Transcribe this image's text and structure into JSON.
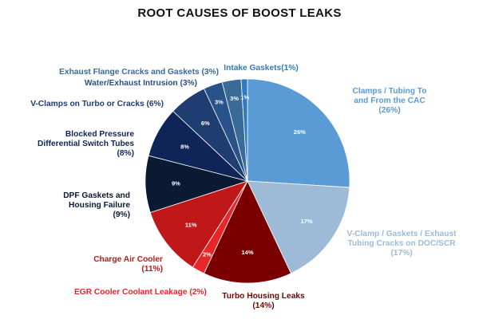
{
  "chart_data": {
    "type": "pie",
    "title": "ROOT CAUSES OF BOOST LEAKS",
    "slices": [
      {
        "label": "Clamps / Tubing To and From the CAC",
        "value": 26,
        "pct_text": "26%",
        "label_lines": [
          "Clamps / Tubing To",
          "and From the CAC",
          "(26%)"
        ],
        "color": "#5B9BD5",
        "label_color": "#5B9BD5"
      },
      {
        "label": "V-Clamp / Gaskets / Exhaust Tubing Cracks on DOC/SCR",
        "value": 17,
        "pct_text": "17%",
        "label_lines": [
          "V-Clamp / Gaskets / Exhaust",
          "Tubing Cracks on DOC/SCR",
          "(17%)"
        ],
        "color": "#9DBBD6",
        "label_color": "#9DBBD6"
      },
      {
        "label": "Turbo Housing Leaks",
        "value": 14,
        "pct_text": "14%",
        "label_lines": [
          "Turbo Housing Leaks",
          "(14%)"
        ],
        "color": "#7A0000",
        "label_color": "#7A0000"
      },
      {
        "label": "EGR Cooler Coolant Leakage",
        "value": 2,
        "pct_text": "2%",
        "label_lines": [
          "EGR Cooler Coolant Leakage (2%)"
        ],
        "color": "#E8262A",
        "label_color": "#E8262A"
      },
      {
        "label": "Charge Air Cooler",
        "value": 11,
        "pct_text": "11%",
        "label_lines": [
          "Charge Air Cooler",
          "(11%)"
        ],
        "color": "#C01818",
        "label_color": "#C01818"
      },
      {
        "label": "DPF Gaskets and Housing Failure",
        "value": 9,
        "pct_text": "9%",
        "label_lines": [
          "DPF Gaskets and",
          "Housing Failure",
          "(9%)"
        ],
        "color": "#0B1A33",
        "label_color": "#0B1A33"
      },
      {
        "label": "Blocked Pressure Differential Switch Tubes",
        "value": 8,
        "pct_text": "8%",
        "label_lines": [
          "Blocked Pressure",
          "Differential Switch Tubes",
          "(8%)"
        ],
        "color": "#0F2557",
        "label_color": "#0F2557"
      },
      {
        "label": "V-Clamps on Turbo or Cracks",
        "value": 6,
        "pct_text": "6%",
        "label_lines": [
          "V-Clamps on Turbo or Cracks (6%)"
        ],
        "color": "#203D72",
        "label_color": "#203D72"
      },
      {
        "label": "Water/Exhaust Intrusion",
        "value": 3,
        "pct_text": "3%",
        "label_lines": [
          "Water/Exhaust Intrusion (3%)"
        ],
        "color": "#28528A",
        "label_color": "#28528A"
      },
      {
        "label": "Exhaust Flange Cracks and Gaskets",
        "value": 3,
        "pct_text": "3%",
        "label_lines": [
          "Exhaust Flange Cracks and Gaskets (3%)"
        ],
        "color": "#3A6A98",
        "label_color": "#3A6A98"
      },
      {
        "label": "Intake Gaskets",
        "value": 1,
        "pct_text": "1%",
        "label_lines": [
          "Intake Gaskets(1%)"
        ],
        "color": "#2E7BC0",
        "label_color": "#2E7BC0"
      }
    ],
    "start": "12 o'clock",
    "direction": "clockwise",
    "legend": "none"
  }
}
